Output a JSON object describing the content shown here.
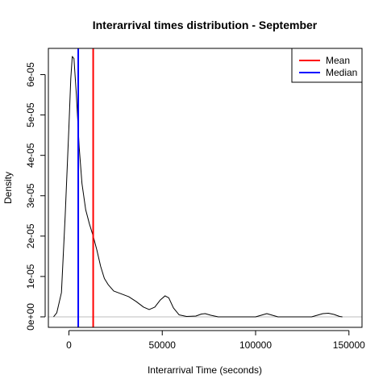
{
  "chart_data": {
    "type": "line",
    "title": "Interarrival times distribution - September",
    "xlabel": "Interarrival Time (seconds)",
    "ylabel": "Density",
    "xlim": [
      -11000,
      157000
    ],
    "ylim": [
      -2.6e-06,
      6.65e-05
    ],
    "x_ticks": [
      {
        "value": 0,
        "label": "0"
      },
      {
        "value": 50000,
        "label": "50000"
      },
      {
        "value": 100000,
        "label": "100000"
      },
      {
        "value": 150000,
        "label": "150000"
      }
    ],
    "y_ticks": [
      {
        "value": 0,
        "label": "0e+00"
      },
      {
        "value": 1e-05,
        "label": "1e-05"
      },
      {
        "value": 2e-05,
        "label": "2e-05"
      },
      {
        "value": 3e-05,
        "label": "3e-05"
      },
      {
        "value": 4e-05,
        "label": "4e-05"
      },
      {
        "value": 5e-05,
        "label": "5e-05"
      },
      {
        "value": 6e-05,
        "label": "6e-05"
      }
    ],
    "series": [
      {
        "color": "#000000",
        "points": [
          [
            -8200,
            0
          ],
          [
            -6500,
            1e-06
          ],
          [
            -4000,
            6e-06
          ],
          [
            -2000,
            2.5e-05
          ],
          [
            0,
            4.7e-05
          ],
          [
            1000,
            5.9e-05
          ],
          [
            1800,
            6.45e-05
          ],
          [
            2700,
            6.4e-05
          ],
          [
            4000,
            5.5e-05
          ],
          [
            5500,
            4.2e-05
          ],
          [
            7000,
            3.3e-05
          ],
          [
            9000,
            2.65e-05
          ],
          [
            11000,
            2.3e-05
          ],
          [
            13000,
            2e-05
          ],
          [
            15000,
            1.65e-05
          ],
          [
            17000,
            1.25e-05
          ],
          [
            19000,
            9.5e-06
          ],
          [
            21000,
            8e-06
          ],
          [
            24000,
            6.4e-06
          ],
          [
            28000,
            5.7e-06
          ],
          [
            32000,
            5e-06
          ],
          [
            36000,
            3.8e-06
          ],
          [
            40000,
            2.4e-06
          ],
          [
            43000,
            1.8e-06
          ],
          [
            46000,
            2.4e-06
          ],
          [
            49000,
            4.2e-06
          ],
          [
            51500,
            5.2e-06
          ],
          [
            53500,
            4.7e-06
          ],
          [
            56000,
            2.2e-06
          ],
          [
            59000,
            5e-07
          ],
          [
            63000,
            1e-07
          ],
          [
            68000,
            2e-07
          ],
          [
            71000,
            7e-07
          ],
          [
            73000,
            8e-07
          ],
          [
            76000,
            4e-07
          ],
          [
            80000,
            0
          ],
          [
            100000,
            0
          ],
          [
            103000,
            4e-07
          ],
          [
            106000,
            8e-07
          ],
          [
            109000,
            4e-07
          ],
          [
            112000,
            0
          ],
          [
            130000,
            0
          ],
          [
            133000,
            4e-07
          ],
          [
            136000,
            8e-07
          ],
          [
            139000,
            9e-07
          ],
          [
            142000,
            6e-07
          ],
          [
            145000,
            1e-07
          ],
          [
            146500,
            0
          ]
        ]
      }
    ],
    "vlines": [
      {
        "name": "Mean",
        "x": 13000,
        "color": "#ff0000"
      },
      {
        "name": "Median",
        "x": 5000,
        "color": "#0000ff"
      }
    ],
    "hline": {
      "y": 0,
      "color": "#bebebe"
    },
    "legend": {
      "position": "top-right",
      "entries": [
        {
          "label": "Mean",
          "color": "#ff0000"
        },
        {
          "label": "Median",
          "color": "#0000ff"
        }
      ]
    },
    "grid": false
  }
}
